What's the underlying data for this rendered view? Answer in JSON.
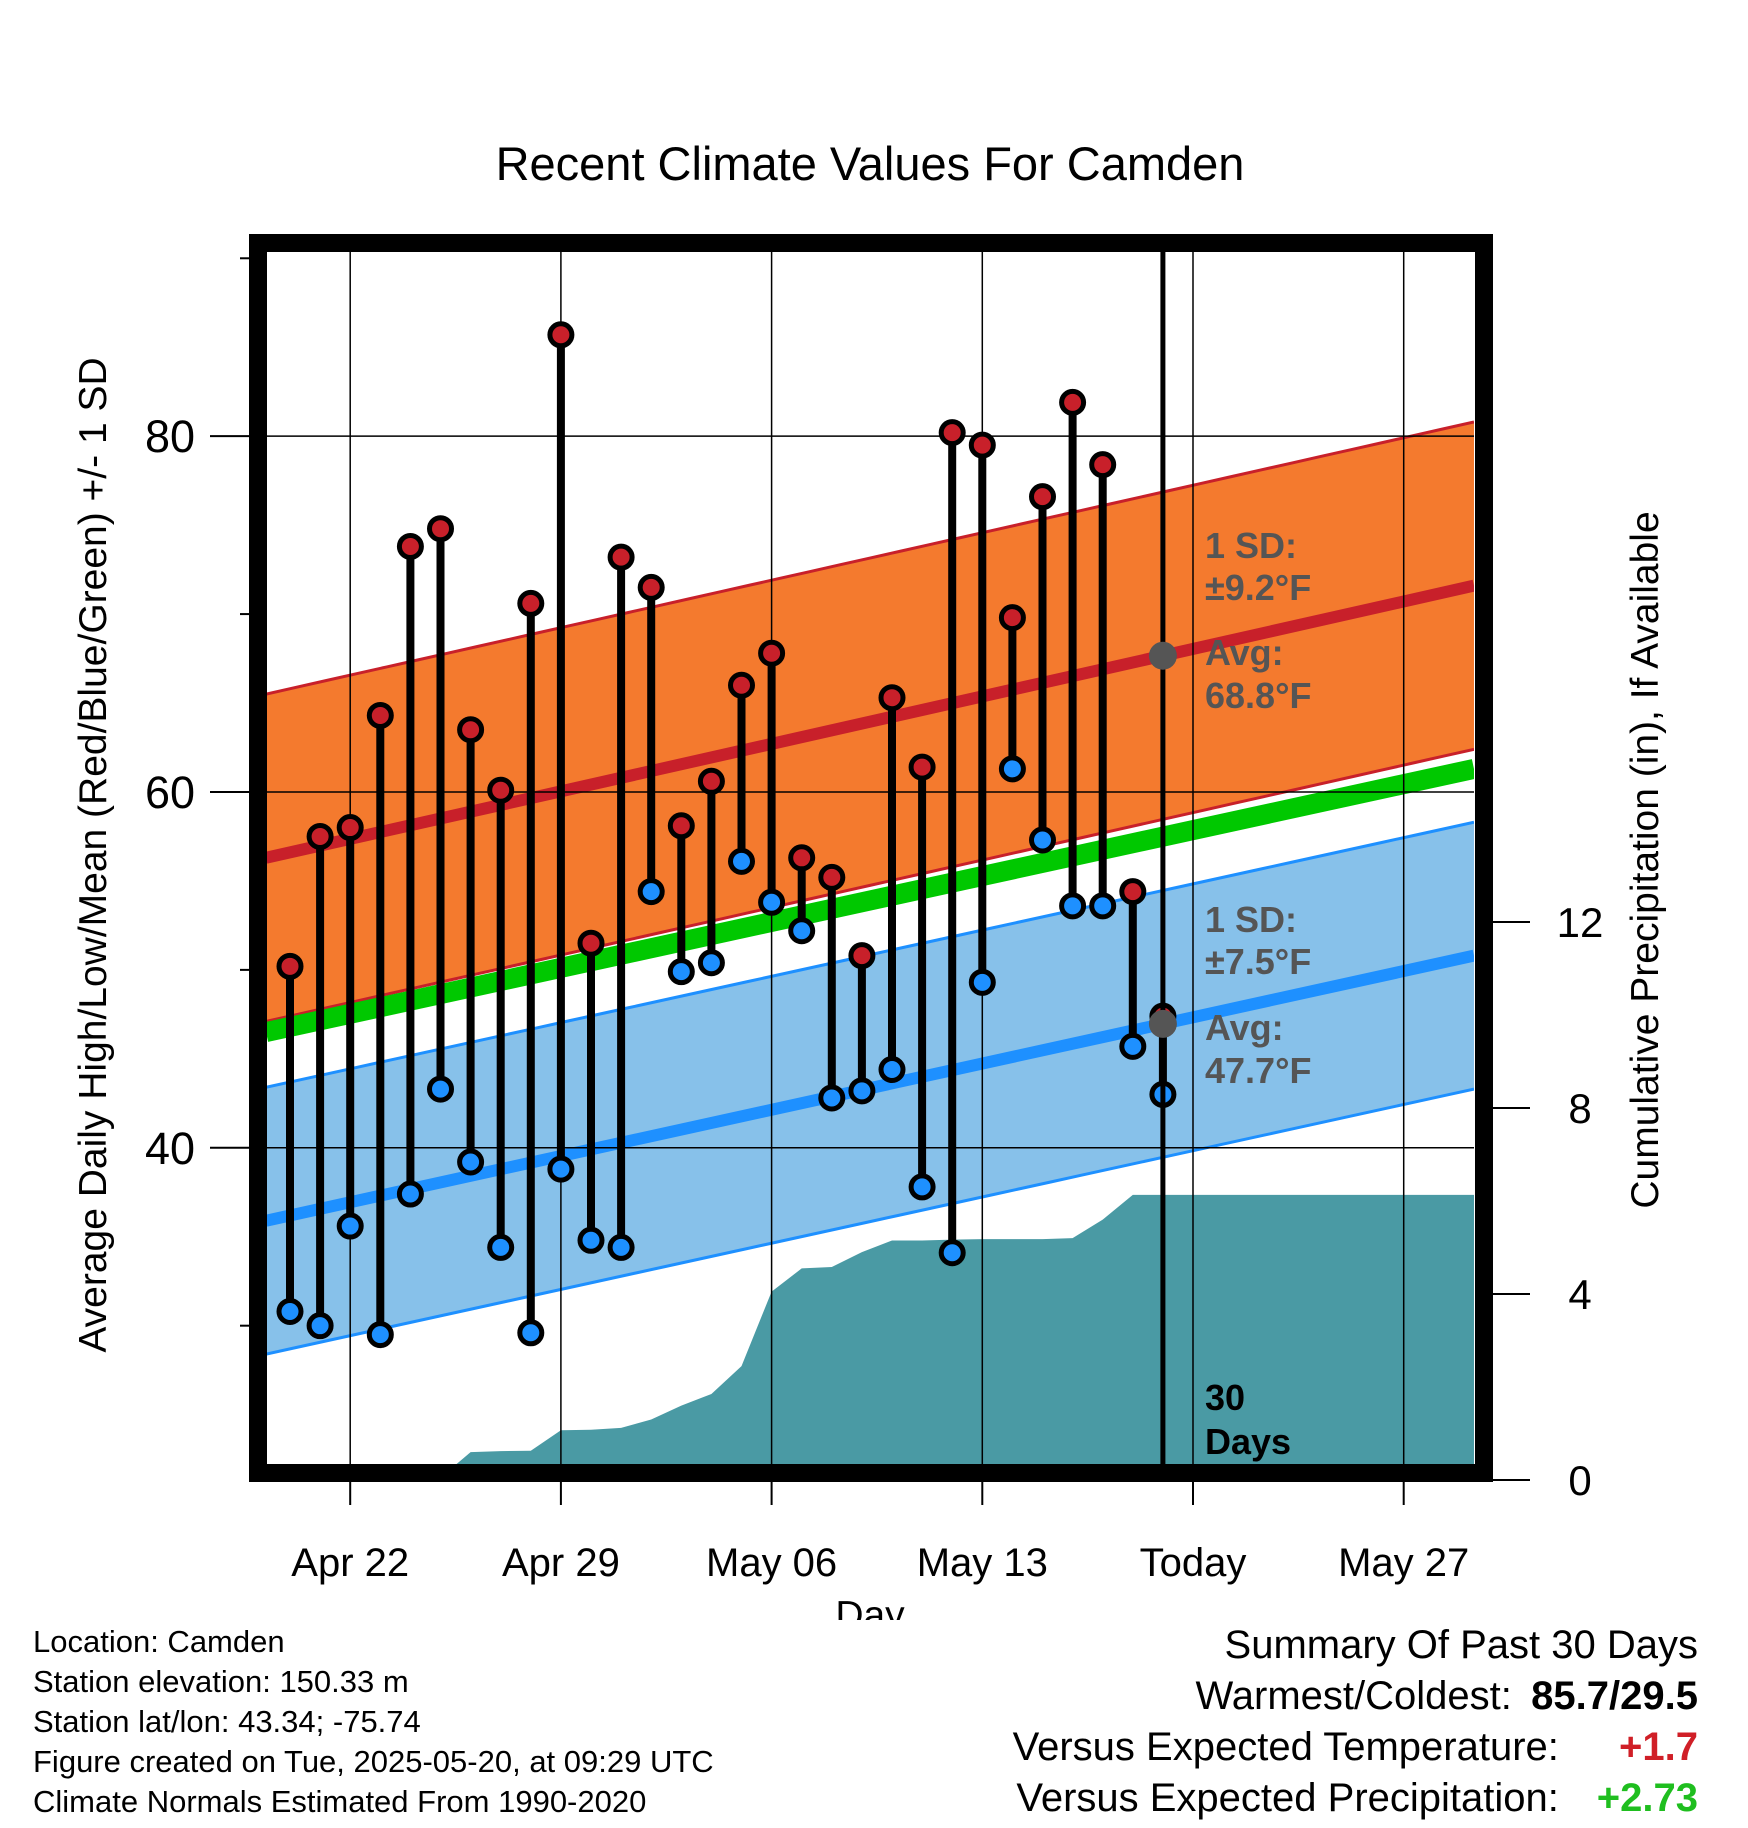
{
  "chart_data": {
    "type": "line",
    "title": "Recent Climate Values For Camden",
    "xlabel": "Day",
    "ylabel": "Average Daily High/Low/Mean (Red/Blue/Green) +/- 1 SD",
    "y2label": "Cumulative Precipitation (in), If Available",
    "x_tick_labels": [
      "Apr 22",
      "Apr 29",
      "May 06",
      "May 13",
      "Today",
      "May 27"
    ],
    "y_ticks": [
      40,
      60,
      80
    ],
    "y2_ticks": [
      0,
      4,
      8,
      12
    ],
    "y2_tick_labels": [
      "0",
      "4",
      "8",
      "12"
    ],
    "y_range": [
      22,
      93
    ],
    "y2_range": [
      0,
      26.6
    ],
    "today_index": 29,
    "today_label": "30\nDays",
    "days": [
      "Apr 20",
      "Apr 21",
      "Apr 22",
      "Apr 23",
      "Apr 24",
      "Apr 25",
      "Apr 26",
      "Apr 27",
      "Apr 28",
      "Apr 29",
      "Apr 30",
      "May 01",
      "May 02",
      "May 03",
      "May 04",
      "May 05",
      "May 06",
      "May 07",
      "May 08",
      "May 09",
      "May 10",
      "May 11",
      "May 12",
      "May 13",
      "May 14",
      "May 15",
      "May 16",
      "May 17",
      "May 18",
      "May 19",
      "May 20",
      "May 21",
      "May 22",
      "May 23",
      "May 24",
      "May 25",
      "May 26",
      "May 27",
      "May 28",
      "May 29"
    ],
    "series": [
      {
        "name": "Daily High",
        "color": "#c8202a",
        "values": [
          50.2,
          57.5,
          58.0,
          64.3,
          73.8,
          74.8,
          63.5,
          60.1,
          70.6,
          85.7,
          51.5,
          73.2,
          71.5,
          58.1,
          60.6,
          66.0,
          67.8,
          56.3,
          55.2,
          50.8,
          65.3,
          61.4,
          80.2,
          79.5,
          69.8,
          76.6,
          81.9,
          78.4,
          54.4,
          47.4
        ]
      },
      {
        "name": "Daily Low",
        "color": "#1e90ff",
        "values": [
          30.8,
          30.0,
          35.6,
          29.5,
          37.4,
          43.3,
          39.2,
          34.4,
          29.6,
          38.8,
          34.8,
          34.4,
          54.4,
          49.9,
          50.4,
          56.1,
          53.8,
          52.2,
          42.8,
          43.2,
          44.4,
          37.8,
          34.1,
          49.3,
          61.3,
          57.3,
          53.6,
          53.6,
          45.7,
          43.0
        ]
      },
      {
        "name": "Normal High",
        "color": "#c8202a",
        "values": [
          56.3,
          71.6
        ]
      },
      {
        "name": "Normal High SD",
        "color": "#f47a2e",
        "sd": 9.2
      },
      {
        "name": "Normal Low",
        "color": "#1e90ff",
        "values": [
          35.9,
          50.8
        ]
      },
      {
        "name": "Normal Low SD",
        "color": "#87c1ea",
        "sd": 7.5
      },
      {
        "name": "Normal Mean",
        "color": "#00c800",
        "values": [
          46.5,
          61.3
        ]
      },
      {
        "name": "Cumulative Precipitation",
        "color": "#4a9aa4",
        "values": [
          0,
          0,
          0,
          0,
          0,
          0.05,
          0.6,
          0.62,
          0.63,
          1.07,
          1.08,
          1.12,
          1.3,
          1.6,
          1.85,
          2.45,
          4.05,
          4.55,
          4.58,
          4.9,
          5.15,
          5.15,
          5.17,
          5.18,
          5.18,
          5.18,
          5.2,
          5.6,
          6.13,
          6.13,
          6.13,
          6.13,
          6.13,
          6.13,
          6.13,
          6.13,
          6.13,
          6.13,
          6.13,
          6.13
        ]
      }
    ]
  },
  "annotations": {
    "high_sd_l1": "1 SD:",
    "high_sd_l2": "±9.2°F",
    "high_avg_l1": "Avg:",
    "high_avg_l2": "68.8°F",
    "low_sd_l1": "1 SD:",
    "low_sd_l2": "±7.5°F",
    "low_avg_l1": "Avg:",
    "low_avg_l2": "47.7°F",
    "today_marker_l1": "30",
    "today_marker_l2": "Days"
  },
  "footer": {
    "location": "Location: Camden",
    "elevation": "Station elevation: 150.33 m",
    "latlon": "Station lat/lon: 43.34; -75.74",
    "created": "Figure created on Tue, 2025-05-20, at 09:29 UTC",
    "normals": "Climate Normals Estimated From 1990-2020"
  },
  "summary": {
    "title": "Summary Of Past 30 Days",
    "warmest_label": "Warmest/Coldest:",
    "warmest_value": "85.7/29.5",
    "temp_label": "Versus Expected Temperature:",
    "temp_value": "+1.7",
    "temp_color": "#d01f27",
    "precip_label": "Versus Expected Precipitation:",
    "precip_value": "+2.73",
    "precip_color": "#1fbe1f"
  }
}
